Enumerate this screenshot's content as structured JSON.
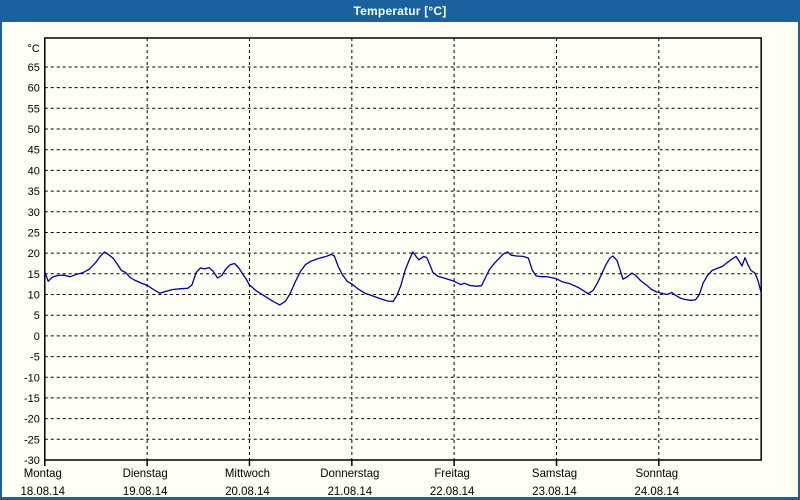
{
  "window": {
    "title": "Temperatur [°C]",
    "colors": {
      "title_bar": "#1a629e",
      "border": "#1a629e",
      "title_text": "#ffffff",
      "content_bg": "#fffff6",
      "grid": "#000000",
      "text": "#000000",
      "line": "#0000a0"
    }
  },
  "chart_data": {
    "type": "line",
    "title": "Temperatur [°C]",
    "ylabel": "°C",
    "xlabel": "",
    "legend": "none",
    "grid": "dashed",
    "y_axis": {
      "min": -30,
      "max": 72,
      "tick_min": -30,
      "tick_max": 65,
      "tick_step": 5
    },
    "x_axis": {
      "hours_total": 168,
      "tick_interval_hours": 24,
      "days": [
        {
          "name": "Montag",
          "date": "18.08.14"
        },
        {
          "name": "Dienstag",
          "date": "19.08.14"
        },
        {
          "name": "Mittwoch",
          "date": "20.08.14"
        },
        {
          "name": "Donnerstag",
          "date": "21.08.14"
        },
        {
          "name": "Freitag",
          "date": "22.08.14"
        },
        {
          "name": "Samstag",
          "date": "23.08.14"
        },
        {
          "name": "Sonntag",
          "date": "24.08.14"
        }
      ]
    },
    "series": [
      {
        "name": "Temperatur",
        "color": "#0000a0",
        "unit": "°C",
        "x_unit": "hours since Mon 18.08.14 00:00",
        "points": [
          [
            0,
            15.5
          ],
          [
            0.8,
            13.2
          ],
          [
            1.8,
            14.2
          ],
          [
            3,
            14.6
          ],
          [
            4.5,
            14.7
          ],
          [
            6,
            14.3
          ],
          [
            7.5,
            14.9
          ],
          [
            9,
            15.3
          ],
          [
            10.5,
            16.2
          ],
          [
            12,
            17.8
          ],
          [
            13,
            19.2
          ],
          [
            14,
            20.3
          ],
          [
            15,
            19.6
          ],
          [
            16,
            18.8
          ],
          [
            17,
            17.3
          ],
          [
            18,
            15.8
          ],
          [
            19,
            15.3
          ],
          [
            20,
            14.1
          ],
          [
            21,
            13.5
          ],
          [
            22.5,
            12.8
          ],
          [
            24,
            12.2
          ],
          [
            25.5,
            11.2
          ],
          [
            27,
            10.3
          ],
          [
            28.5,
            10.8
          ],
          [
            30,
            11.2
          ],
          [
            32,
            11.4
          ],
          [
            33.5,
            11.5
          ],
          [
            34.5,
            12.3
          ],
          [
            35.5,
            15.3
          ],
          [
            36.5,
            16.4
          ],
          [
            37.5,
            16.2
          ],
          [
            38.5,
            16.5
          ],
          [
            39.5,
            15.6
          ],
          [
            40.5,
            14.0
          ],
          [
            41.5,
            14.6
          ],
          [
            42.5,
            16.2
          ],
          [
            43.5,
            17.2
          ],
          [
            44.5,
            17.5
          ],
          [
            45.5,
            16.4
          ],
          [
            46.5,
            14.8
          ],
          [
            47.2,
            13.8
          ],
          [
            48,
            12.3
          ],
          [
            49.7,
            10.8
          ],
          [
            51.6,
            9.6
          ],
          [
            53.4,
            8.4
          ],
          [
            55.1,
            7.5
          ],
          [
            56.5,
            8.4
          ],
          [
            57.6,
            10.4
          ],
          [
            58.8,
            13.2
          ],
          [
            60,
            15.6
          ],
          [
            61.1,
            17.2
          ],
          [
            62.3,
            18.0
          ],
          [
            64.2,
            18.7
          ],
          [
            66,
            19.2
          ],
          [
            67.2,
            19.7
          ],
          [
            67.9,
            19.3
          ],
          [
            68.8,
            16.8
          ],
          [
            69.8,
            14.8
          ],
          [
            70.9,
            13.2
          ],
          [
            72.1,
            12.5
          ],
          [
            73.5,
            11.3
          ],
          [
            75.1,
            10.3
          ],
          [
            76.8,
            9.7
          ],
          [
            78.6,
            9.0
          ],
          [
            80.5,
            8.4
          ],
          [
            81.7,
            8.3
          ],
          [
            82.6,
            9.8
          ],
          [
            83.5,
            12.2
          ],
          [
            84.5,
            15.8
          ],
          [
            85.4,
            18.2
          ],
          [
            86.3,
            20.3
          ],
          [
            87.3,
            18.9
          ],
          [
            87.7,
            18.4
          ],
          [
            88.9,
            19.2
          ],
          [
            89.6,
            18.9
          ],
          [
            90.3,
            17.2
          ],
          [
            91,
            15.4
          ],
          [
            92.2,
            14.4
          ],
          [
            93.6,
            14.0
          ],
          [
            95.4,
            13.4
          ],
          [
            96,
            13.2
          ],
          [
            97.5,
            12.4
          ],
          [
            98.4,
            12.7
          ],
          [
            99.6,
            12.2
          ],
          [
            101,
            12.0
          ],
          [
            102.4,
            12.1
          ],
          [
            103.4,
            14.2
          ],
          [
            104.3,
            16.1
          ],
          [
            105.5,
            17.6
          ],
          [
            106.6,
            18.8
          ],
          [
            107.5,
            19.8
          ],
          [
            108.5,
            20.3
          ],
          [
            109.4,
            19.5
          ],
          [
            110.6,
            19.3
          ],
          [
            112.2,
            19.2
          ],
          [
            113.4,
            18.8
          ],
          [
            114.3,
            15.9
          ],
          [
            115.2,
            14.5
          ],
          [
            116.4,
            14.3
          ],
          [
            117.8,
            14.3
          ],
          [
            119.2,
            14.0
          ],
          [
            120,
            13.8
          ],
          [
            121.3,
            13.1
          ],
          [
            123.2,
            12.6
          ],
          [
            125.3,
            11.6
          ],
          [
            126.5,
            10.8
          ],
          [
            127.4,
            10.2
          ],
          [
            128.6,
            11.0
          ],
          [
            129.7,
            13.0
          ],
          [
            130.7,
            15.2
          ],
          [
            131.6,
            17.2
          ],
          [
            132.5,
            18.8
          ],
          [
            133.2,
            19.3
          ],
          [
            134.2,
            18.2
          ],
          [
            134.9,
            16.0
          ],
          [
            135.6,
            13.7
          ],
          [
            136.5,
            14.2
          ],
          [
            137.7,
            15.2
          ],
          [
            138.6,
            14.6
          ],
          [
            139.8,
            13.3
          ],
          [
            141.2,
            12.2
          ],
          [
            142.3,
            11.2
          ],
          [
            143.5,
            10.6
          ],
          [
            144,
            10.5
          ],
          [
            145.1,
            10.2
          ],
          [
            146,
            10.0
          ],
          [
            147,
            10.5
          ],
          [
            147.9,
            9.8
          ],
          [
            149.1,
            9.1
          ],
          [
            150.2,
            8.8
          ],
          [
            151.4,
            8.6
          ],
          [
            152.6,
            8.7
          ],
          [
            153.5,
            10.0
          ],
          [
            154.4,
            12.8
          ],
          [
            155.4,
            14.6
          ],
          [
            156.5,
            15.8
          ],
          [
            157.7,
            16.3
          ],
          [
            158.9,
            16.8
          ],
          [
            160,
            17.7
          ],
          [
            161.2,
            18.6
          ],
          [
            162.1,
            19.2
          ],
          [
            163,
            17.8
          ],
          [
            163.5,
            16.9
          ],
          [
            164.2,
            18.9
          ],
          [
            164.9,
            17.2
          ],
          [
            165.6,
            15.8
          ],
          [
            166.5,
            15.2
          ],
          [
            167.2,
            13.5
          ],
          [
            167.9,
            10.8
          ]
        ]
      }
    ]
  }
}
